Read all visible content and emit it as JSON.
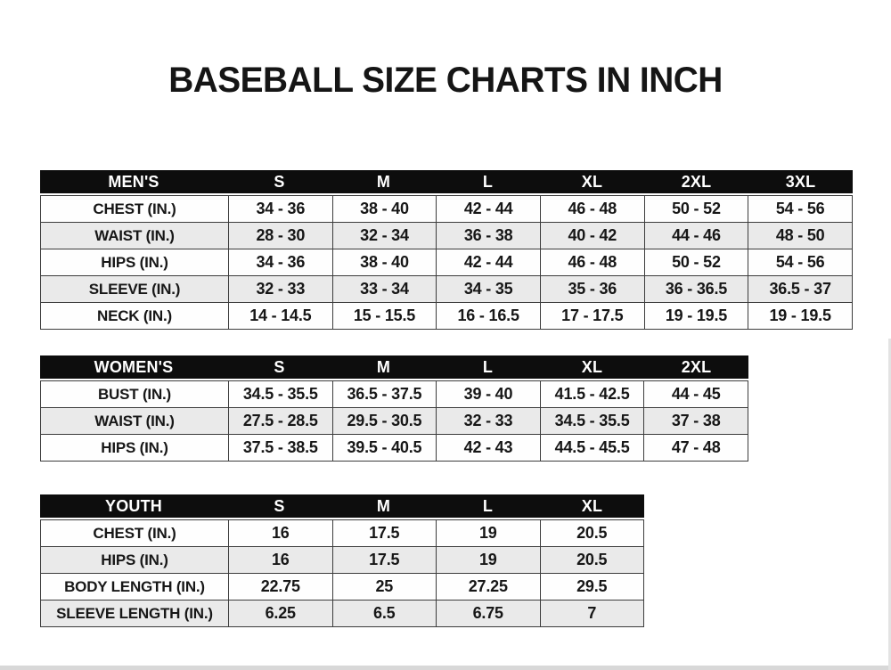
{
  "title": "BASEBALL SIZE CHARTS IN INCH",
  "colors": {
    "header_bg": "#0d0d0d",
    "header_text": "#ffffff",
    "stripe": "#eaeaea",
    "border": "#3c3c3c",
    "text": "#171717"
  },
  "tables": [
    {
      "name": "mens",
      "header": [
        "MEN'S",
        "S",
        "M",
        "L",
        "XL",
        "2XL",
        "3XL"
      ],
      "rows": [
        {
          "label": "CHEST (IN.)",
          "values": [
            "34 - 36",
            "38 - 40",
            "42 - 44",
            "46 - 48",
            "50 - 52",
            "54 - 56"
          ]
        },
        {
          "label": "WAIST (IN.)",
          "values": [
            "28 - 30",
            "32 - 34",
            "36 - 38",
            "40 - 42",
            "44 - 46",
            "48 - 50"
          ]
        },
        {
          "label": "HIPS (IN.)",
          "values": [
            "34 - 36",
            "38 - 40",
            "42 - 44",
            "46 - 48",
            "50 - 52",
            "54 - 56"
          ]
        },
        {
          "label": "SLEEVE (IN.)",
          "values": [
            "32 - 33",
            "33 - 34",
            "34 - 35",
            "35 - 36",
            "36 - 36.5",
            "36.5 - 37"
          ]
        },
        {
          "label": "NECK (IN.)",
          "values": [
            "14 - 14.5",
            "15 - 15.5",
            "16 - 16.5",
            "17 - 17.5",
            "19 - 19.5",
            "19 - 19.5"
          ]
        }
      ]
    },
    {
      "name": "womens",
      "header": [
        "WOMEN'S",
        "S",
        "M",
        "L",
        "XL",
        "2XL"
      ],
      "rows": [
        {
          "label": "BUST (IN.)",
          "values": [
            "34.5 - 35.5",
            "36.5 - 37.5",
            "39 - 40",
            "41.5 - 42.5",
            "44 - 45"
          ]
        },
        {
          "label": "WAIST (IN.)",
          "values": [
            "27.5 - 28.5",
            "29.5 - 30.5",
            "32 - 33",
            "34.5 - 35.5",
            "37 - 38"
          ]
        },
        {
          "label": "HIPS (IN.)",
          "values": [
            "37.5 - 38.5",
            "39.5 - 40.5",
            "42 - 43",
            "44.5 - 45.5",
            "47 - 48"
          ]
        }
      ]
    },
    {
      "name": "youth",
      "header": [
        "YOUTH",
        "S",
        "M",
        "L",
        "XL"
      ],
      "rows": [
        {
          "label": "CHEST (IN.)",
          "values": [
            "16",
            "17.5",
            "19",
            "20.5"
          ]
        },
        {
          "label": "HIPS (IN.)",
          "values": [
            "16",
            "17.5",
            "19",
            "20.5"
          ]
        },
        {
          "label": "BODY LENGTH (IN.)",
          "values": [
            "22.75",
            "25",
            "27.25",
            "29.5"
          ]
        },
        {
          "label": "SLEEVE LENGTH (IN.)",
          "values": [
            "6.25",
            "6.5",
            "6.75",
            "7"
          ]
        }
      ]
    }
  ]
}
